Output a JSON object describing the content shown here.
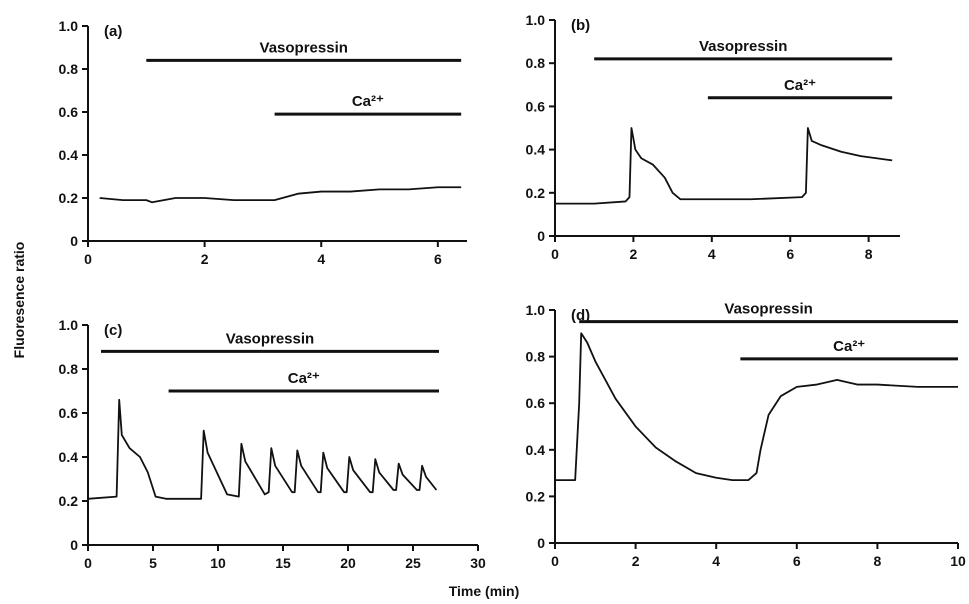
{
  "xlabel": "Time (min)",
  "ylabel": "Fluoresence ratio",
  "chart_data": [
    {
      "type": "line",
      "panel": "(a)",
      "color": "#111111",
      "x": [
        0.2,
        0.6,
        1,
        1.1,
        1.5,
        2,
        2.5,
        3,
        3.2,
        3.6,
        4,
        4.5,
        5,
        5.5,
        6,
        6.4
      ],
      "values": [
        0.2,
        0.19,
        0.19,
        0.18,
        0.2,
        0.2,
        0.19,
        0.19,
        0.19,
        0.22,
        0.23,
        0.23,
        0.24,
        0.24,
        0.25,
        0.25
      ],
      "xlim": [
        0,
        6.5
      ],
      "xticks": [
        0,
        2,
        4,
        6
      ],
      "ylim": [
        0,
        1
      ],
      "yticks": [
        0,
        0.2,
        0.4,
        0.6,
        0.8,
        {
          "value": 1,
          "label": "1.0"
        }
      ],
      "annotations": [
        {
          "text": "Vasopressin",
          "start": 1,
          "end": 6.4,
          "y": 0.84
        },
        {
          "text": "Ca²⁺",
          "start": 3.2,
          "end": 6.4,
          "y": 0.59
        }
      ]
    },
    {
      "type": "line",
      "panel": "(b)",
      "color": "#111111",
      "x": [
        0,
        1,
        1.8,
        1.9,
        1.95,
        2.05,
        2.2,
        2.5,
        2.8,
        3.0,
        3.2,
        5,
        6.3,
        6.4,
        6.45,
        6.55,
        6.8,
        7.3,
        7.8,
        8.2,
        8.6
      ],
      "values": [
        0.15,
        0.15,
        0.16,
        0.18,
        0.5,
        0.4,
        0.36,
        0.33,
        0.27,
        0.2,
        0.17,
        0.17,
        0.18,
        0.2,
        0.5,
        0.44,
        0.42,
        0.39,
        0.37,
        0.36,
        0.35
      ],
      "xlim": [
        0,
        8.8
      ],
      "xticks": [
        0,
        2,
        4,
        6,
        8
      ],
      "ylim": [
        0,
        1
      ],
      "yticks": [
        0,
        0.2,
        0.4,
        0.6,
        0.8,
        {
          "value": 1,
          "label": "1.0"
        }
      ],
      "annotations": [
        {
          "text": "Vasopressin",
          "start": 1,
          "end": 8.6,
          "y": 0.82
        },
        {
          "text": "Ca²⁺",
          "start": 3.9,
          "end": 8.6,
          "y": 0.64
        }
      ]
    },
    {
      "type": "line",
      "panel": "(c)",
      "color": "#111111",
      "x": [
        0,
        2.2,
        2.4,
        2.6,
        3.2,
        4,
        4.6,
        5.2,
        6,
        8.7,
        8.9,
        9.2,
        10.7,
        11.6,
        11.8,
        12.1,
        13.6,
        13.9,
        14.1,
        14.4,
        15.7,
        15.9,
        16.1,
        16.4,
        17.7,
        17.9,
        18.1,
        18.4,
        19.7,
        19.9,
        20.1,
        20.4,
        21.7,
        21.9,
        22.1,
        22.4,
        23.5,
        23.7,
        23.9,
        24.2,
        25.3,
        25.5,
        25.7,
        26,
        26.8
      ],
      "values": [
        0.21,
        0.22,
        0.66,
        0.5,
        0.44,
        0.4,
        0.33,
        0.22,
        0.21,
        0.21,
        0.52,
        0.42,
        0.23,
        0.22,
        0.46,
        0.38,
        0.23,
        0.24,
        0.44,
        0.36,
        0.24,
        0.24,
        0.43,
        0.36,
        0.24,
        0.24,
        0.42,
        0.35,
        0.24,
        0.24,
        0.4,
        0.34,
        0.24,
        0.24,
        0.39,
        0.33,
        0.25,
        0.25,
        0.37,
        0.32,
        0.25,
        0.25,
        0.36,
        0.31,
        0.25
      ],
      "xlim": [
        0,
        30
      ],
      "xticks": [
        0,
        5,
        10,
        15,
        20,
        25,
        30
      ],
      "ylim": [
        0,
        1
      ],
      "yticks": [
        0,
        0.2,
        0.4,
        0.6,
        0.8,
        {
          "value": 1,
          "label": "1.0"
        }
      ],
      "annotations": [
        {
          "text": "Vasopressin",
          "start": 1,
          "end": 27,
          "y": 0.88
        },
        {
          "text": "Ca²⁺",
          "start": 6.2,
          "end": 27,
          "y": 0.7
        }
      ]
    },
    {
      "type": "line",
      "panel": "(d)",
      "color": "#111111",
      "x": [
        0,
        0.5,
        0.6,
        0.65,
        0.8,
        1,
        1.5,
        2,
        2.5,
        3,
        3.5,
        4,
        4.4,
        4.8,
        5,
        5.1,
        5.3,
        5.6,
        6,
        6.5,
        7,
        7.5,
        8,
        9,
        10
      ],
      "values": [
        0.27,
        0.27,
        0.6,
        0.9,
        0.86,
        0.78,
        0.62,
        0.5,
        0.41,
        0.35,
        0.3,
        0.28,
        0.27,
        0.27,
        0.3,
        0.4,
        0.55,
        0.63,
        0.67,
        0.68,
        0.7,
        0.68,
        0.68,
        0.67,
        0.67
      ],
      "xlim": [
        0,
        10
      ],
      "xticks": [
        0,
        2,
        4,
        6,
        8,
        10
      ],
      "ylim": [
        0,
        1
      ],
      "yticks": [
        0,
        0.2,
        0.4,
        0.6,
        0.8,
        {
          "value": 1,
          "label": "1.0"
        }
      ],
      "annotations": [
        {
          "text": "Vasopressin",
          "start": 0.6,
          "end": 10,
          "y": 0.95
        },
        {
          "text": "Ca²⁺",
          "start": 4.6,
          "end": 10,
          "y": 0.79
        }
      ]
    }
  ]
}
